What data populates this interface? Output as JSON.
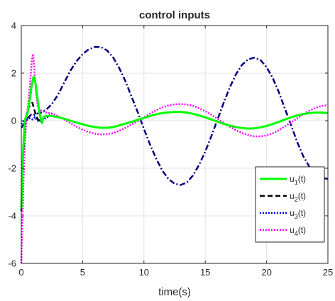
{
  "chart_data": {
    "type": "line",
    "title": "control inputs",
    "xlabel": "time(s)",
    "ylabel": "",
    "xlim": [
      0,
      25
    ],
    "ylim": [
      -6,
      4
    ],
    "xticks": [
      "0",
      "5",
      "10",
      "15",
      "20",
      "25"
    ],
    "yticks": [
      "4",
      "2",
      "0",
      "-2",
      "-4",
      "-6"
    ],
    "grid": true,
    "legend_position": "lower-right",
    "series": [
      {
        "name": "u1(t)",
        "legend_main": "u",
        "legend_sub": "1",
        "legend_tail": "(t)",
        "color": "#00ff00",
        "style": "solid",
        "points": [
          [
            0,
            -3.7
          ],
          [
            0.15,
            -1.2
          ],
          [
            0.3,
            0.05
          ],
          [
            0.5,
            0.3
          ],
          [
            0.7,
            0.9
          ],
          [
            0.85,
            1.5
          ],
          [
            1.0,
            1.85
          ],
          [
            1.15,
            1.6
          ],
          [
            1.3,
            1.0
          ],
          [
            1.45,
            0.4
          ],
          [
            1.6,
            0.05
          ],
          [
            1.7,
            -0.1
          ],
          [
            1.8,
            0.15
          ],
          [
            2.0,
            0.2
          ],
          [
            2.5,
            0.2
          ],
          [
            3,
            0.15
          ],
          [
            3.5,
            0.08
          ],
          [
            4,
            0.0
          ],
          [
            4.5,
            -0.08
          ],
          [
            5,
            -0.15
          ],
          [
            5.5,
            -0.22
          ],
          [
            6,
            -0.27
          ],
          [
            6.5,
            -0.3
          ],
          [
            7,
            -0.3
          ],
          [
            7.5,
            -0.27
          ],
          [
            8,
            -0.2
          ],
          [
            8.5,
            -0.12
          ],
          [
            9,
            -0.05
          ],
          [
            9.5,
            0.04
          ],
          [
            10,
            0.12
          ],
          [
            10.5,
            0.2
          ],
          [
            11,
            0.27
          ],
          [
            11.5,
            0.32
          ],
          [
            12,
            0.35
          ],
          [
            12.5,
            0.37
          ],
          [
            13,
            0.37
          ],
          [
            13.5,
            0.34
          ],
          [
            14,
            0.29
          ],
          [
            14.5,
            0.22
          ],
          [
            15,
            0.14
          ],
          [
            15.5,
            0.05
          ],
          [
            16,
            -0.04
          ],
          [
            16.5,
            -0.13
          ],
          [
            17,
            -0.21
          ],
          [
            17.5,
            -0.27
          ],
          [
            18,
            -0.31
          ],
          [
            18.5,
            -0.33
          ],
          [
            19,
            -0.32
          ],
          [
            19.5,
            -0.28
          ],
          [
            20,
            -0.22
          ],
          [
            20.5,
            -0.14
          ],
          [
            21,
            -0.05
          ],
          [
            21.5,
            0.05
          ],
          [
            22,
            0.14
          ],
          [
            22.5,
            0.22
          ],
          [
            23,
            0.28
          ],
          [
            23.5,
            0.32
          ],
          [
            24,
            0.34
          ],
          [
            24.5,
            0.34
          ],
          [
            25,
            0.32
          ]
        ]
      },
      {
        "name": "u2(t)",
        "legend_main": "u",
        "legend_sub": "2",
        "legend_tail": "(t)",
        "color": "#000000",
        "style": "dashed",
        "points": [
          [
            0,
            -3.8
          ],
          [
            0.15,
            -1.5
          ],
          [
            0.3,
            -0.2
          ],
          [
            0.45,
            0.3
          ],
          [
            0.6,
            0.55
          ],
          [
            0.75,
            0.7
          ],
          [
            0.9,
            0.75
          ],
          [
            1.05,
            0.5
          ],
          [
            1.2,
            0.2
          ],
          [
            1.35,
            0.05
          ],
          [
            1.5,
            0.0
          ]
        ]
      },
      {
        "name": "u3(t)",
        "legend_main": "u",
        "legend_sub": "3",
        "legend_tail": "(t)",
        "color": "#0000ff",
        "style": "dotted",
        "points": [
          [
            0,
            -0.15
          ],
          [
            0.1,
            -0.05
          ],
          [
            0.2,
            0.0
          ],
          [
            0.3,
            -0.05
          ],
          [
            0.5,
            0.05
          ],
          [
            0.7,
            0.1
          ],
          [
            0.9,
            0.05
          ],
          [
            1.1,
            0.15
          ],
          [
            1.3,
            0.0
          ],
          [
            1.5,
            -0.05
          ],
          [
            1.7,
            0.05
          ],
          [
            2.0,
            0.1
          ],
          [
            2.5,
            0.3
          ]
        ]
      },
      {
        "name": "u4(t)",
        "legend_main": "u",
        "legend_sub": "4",
        "legend_tail": "(t)",
        "color": "#ff00ff",
        "style": "dotted",
        "points": [
          [
            0,
            -6.0
          ],
          [
            0.15,
            -3.0
          ],
          [
            0.3,
            -0.8
          ],
          [
            0.45,
            0.2
          ],
          [
            0.6,
            0.9
          ],
          [
            0.75,
            1.8
          ],
          [
            0.85,
            2.5
          ],
          [
            0.95,
            2.8
          ],
          [
            1.05,
            2.3
          ],
          [
            1.2,
            1.2
          ],
          [
            1.35,
            0.6
          ],
          [
            1.5,
            0.45
          ],
          [
            2,
            0.35
          ],
          [
            2.5,
            0.3
          ],
          [
            3,
            0.2
          ],
          [
            3.5,
            0.05
          ],
          [
            4,
            -0.1
          ],
          [
            4.5,
            -0.25
          ],
          [
            5,
            -0.38
          ],
          [
            5.5,
            -0.48
          ],
          [
            6,
            -0.55
          ],
          [
            6.5,
            -0.58
          ],
          [
            7,
            -0.57
          ],
          [
            7.5,
            -0.52
          ],
          [
            8,
            -0.42
          ],
          [
            8.5,
            -0.3
          ],
          [
            9,
            -0.16
          ],
          [
            9.5,
            -0.02
          ],
          [
            10,
            0.14
          ],
          [
            10.5,
            0.3
          ],
          [
            11,
            0.44
          ],
          [
            11.5,
            0.56
          ],
          [
            12,
            0.64
          ],
          [
            12.5,
            0.69
          ],
          [
            13,
            0.7
          ],
          [
            13.5,
            0.68
          ],
          [
            14,
            0.62
          ],
          [
            14.5,
            0.52
          ],
          [
            15,
            0.4
          ],
          [
            15.5,
            0.25
          ],
          [
            16,
            0.08
          ],
          [
            16.5,
            -0.09
          ],
          [
            17,
            -0.25
          ],
          [
            17.5,
            -0.4
          ],
          [
            18,
            -0.52
          ],
          [
            18.5,
            -0.61
          ],
          [
            19,
            -0.66
          ],
          [
            19.5,
            -0.66
          ],
          [
            20,
            -0.62
          ],
          [
            20.5,
            -0.53
          ],
          [
            21,
            -0.4
          ],
          [
            21.5,
            -0.24
          ],
          [
            22,
            -0.07
          ],
          [
            22.5,
            0.1
          ],
          [
            23,
            0.27
          ],
          [
            23.5,
            0.42
          ],
          [
            24,
            0.54
          ],
          [
            24.5,
            0.62
          ],
          [
            25,
            0.66
          ]
        ]
      },
      {
        "name": "",
        "color": "#000080",
        "style": "dashdot",
        "points": [
          [
            0,
            -0.3
          ],
          [
            0.2,
            -0.15
          ],
          [
            0.4,
            0.05
          ],
          [
            0.6,
            0.15
          ],
          [
            0.8,
            0.25
          ],
          [
            1.0,
            0.22
          ],
          [
            1.2,
            0.3
          ],
          [
            1.5,
            0.3
          ],
          [
            2,
            0.45
          ],
          [
            2.5,
            0.7
          ],
          [
            3,
            1.1
          ],
          [
            3.5,
            1.6
          ],
          [
            4,
            2.1
          ],
          [
            4.5,
            2.5
          ],
          [
            5,
            2.8
          ],
          [
            5.5,
            3.0
          ],
          [
            6,
            3.1
          ],
          [
            6.5,
            3.1
          ],
          [
            7,
            2.95
          ],
          [
            7.5,
            2.65
          ],
          [
            8,
            2.2
          ],
          [
            8.5,
            1.65
          ],
          [
            9,
            1.0
          ],
          [
            9.5,
            0.35
          ],
          [
            10,
            -0.35
          ],
          [
            10.5,
            -1.0
          ],
          [
            11,
            -1.6
          ],
          [
            11.5,
            -2.1
          ],
          [
            12,
            -2.45
          ],
          [
            12.5,
            -2.65
          ],
          [
            13,
            -2.7
          ],
          [
            13.5,
            -2.6
          ],
          [
            14,
            -2.3
          ],
          [
            14.5,
            -1.85
          ],
          [
            15,
            -1.3
          ],
          [
            15.5,
            -0.65
          ],
          [
            16,
            0.05
          ],
          [
            16.5,
            0.75
          ],
          [
            17,
            1.4
          ],
          [
            17.5,
            1.95
          ],
          [
            18,
            2.35
          ],
          [
            18.5,
            2.58
          ],
          [
            19,
            2.65
          ],
          [
            19.5,
            2.55
          ],
          [
            20,
            2.25
          ],
          [
            20.5,
            1.8
          ],
          [
            21,
            1.2
          ],
          [
            21.5,
            0.5
          ],
          [
            22,
            -0.2
          ],
          [
            22.5,
            -0.9
          ],
          [
            23,
            -1.5
          ],
          [
            23.5,
            -1.95
          ],
          [
            24,
            -2.25
          ],
          [
            24.5,
            -2.4
          ],
          [
            25,
            -2.45
          ]
        ]
      }
    ]
  }
}
